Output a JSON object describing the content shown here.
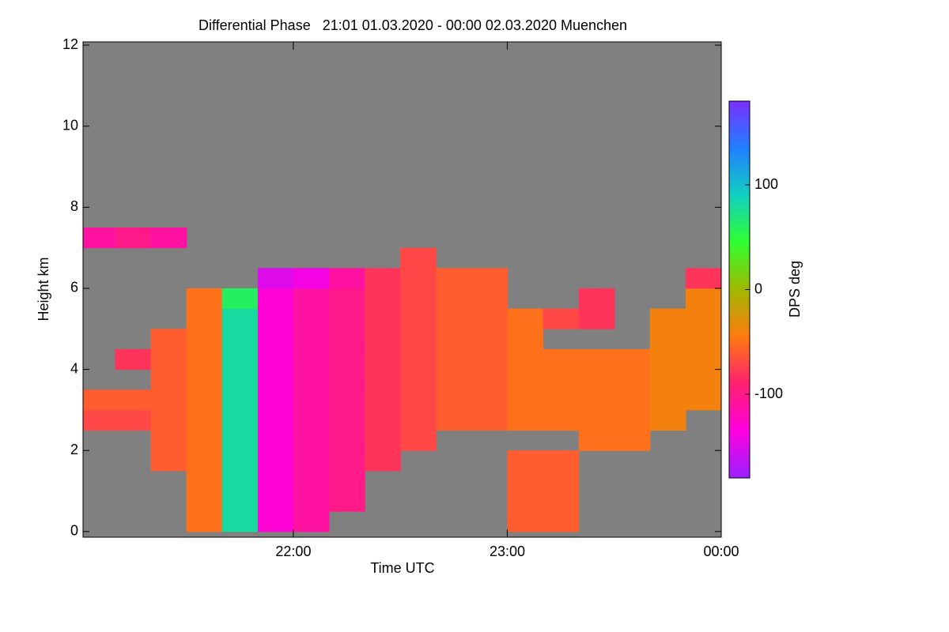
{
  "chart_data": {
    "type": "heatmap",
    "title": "Differential Phase   21:01 01.03.2020 - 00:00 02.03.2020 Muenchen",
    "x_label": "Time UTC",
    "y_label": "Height km",
    "xlim": [
      21.017,
      24.0
    ],
    "ylim": [
      -0.14,
      12.08
    ],
    "xticks": [
      {
        "value": 22,
        "label": "22:00"
      },
      {
        "value": 23,
        "label": "23:00"
      },
      {
        "value": 24,
        "label": "00:00"
      }
    ],
    "yticks": [
      0,
      2,
      4,
      6,
      8,
      10,
      12
    ],
    "x": [
      21.083,
      21.25,
      21.417,
      21.583,
      21.75,
      21.917,
      22.083,
      22.25,
      22.417,
      22.583,
      22.75,
      22.917,
      23.083,
      23.25,
      23.417,
      23.583,
      23.75,
      23.917
    ],
    "y": [
      0.25,
      0.75,
      1.25,
      1.75,
      2.25,
      2.75,
      3.25,
      3.75,
      4.25,
      4.75,
      5.25,
      5.75,
      6.25,
      6.75,
      7.25
    ],
    "z": [
      [
        null,
        null,
        null,
        -50,
        80,
        -130,
        -110,
        null,
        null,
        null,
        null,
        null,
        -60,
        -60,
        null,
        null,
        null,
        null
      ],
      [
        null,
        null,
        null,
        -50,
        80,
        -130,
        -110,
        -100,
        null,
        null,
        null,
        null,
        -60,
        -60,
        null,
        null,
        null,
        null
      ],
      [
        null,
        null,
        null,
        -50,
        80,
        -130,
        -110,
        -100,
        null,
        null,
        null,
        null,
        -60,
        -60,
        null,
        null,
        null,
        null
      ],
      [
        null,
        null,
        -60,
        -50,
        80,
        -130,
        -110,
        -100,
        -80,
        null,
        null,
        null,
        -60,
        -60,
        null,
        null,
        null,
        null
      ],
      [
        null,
        null,
        -60,
        -50,
        80,
        -130,
        -110,
        -100,
        -80,
        -70,
        null,
        null,
        null,
        null,
        -50,
        -50,
        null,
        null
      ],
      [
        -70,
        -70,
        -60,
        -50,
        80,
        -130,
        -110,
        -100,
        -80,
        -70,
        -60,
        -60,
        -50,
        -50,
        -50,
        -50,
        -40,
        null
      ],
      [
        -60,
        -60,
        -60,
        -50,
        80,
        -130,
        -110,
        -100,
        -80,
        -70,
        -60,
        -60,
        -50,
        -50,
        -50,
        -50,
        -40,
        -40
      ],
      [
        null,
        null,
        -60,
        -50,
        80,
        -130,
        -110,
        -100,
        -80,
        -70,
        -60,
        -60,
        -50,
        -50,
        -50,
        -50,
        -40,
        -40
      ],
      [
        null,
        -80,
        -60,
        -50,
        80,
        -130,
        -110,
        -100,
        -80,
        -70,
        -60,
        -60,
        -50,
        -50,
        -50,
        -50,
        -40,
        -40
      ],
      [
        null,
        null,
        -60,
        -50,
        80,
        -130,
        -110,
        -100,
        -80,
        -70,
        -60,
        -60,
        -50,
        null,
        null,
        null,
        -40,
        -40
      ],
      [
        null,
        null,
        null,
        -50,
        80,
        -130,
        -110,
        -100,
        -80,
        -70,
        -60,
        -60,
        -50,
        -70,
        -80,
        null,
        -40,
        -40
      ],
      [
        null,
        null,
        null,
        -50,
        60,
        -130,
        -110,
        -100,
        -80,
        -70,
        -60,
        -60,
        null,
        null,
        -80,
        null,
        null,
        -40
      ],
      [
        null,
        null,
        null,
        null,
        null,
        -150,
        -140,
        -110,
        -80,
        -70,
        -60,
        -60,
        null,
        null,
        null,
        null,
        null,
        -80
      ],
      [
        null,
        null,
        null,
        null,
        null,
        null,
        null,
        null,
        null,
        -70,
        null,
        null,
        null,
        null,
        null,
        null,
        null,
        null
      ],
      [
        -110,
        -100,
        -110,
        null,
        null,
        null,
        null,
        null,
        null,
        null,
        null,
        null,
        null,
        null,
        null,
        null,
        null,
        null
      ]
    ],
    "background_color": "#808080",
    "colorscale": [
      "#9a20ff",
      "#ff00e0",
      "#ff2070",
      "#ff7a10",
      "#a0b800",
      "#30ff30",
      "#10d0c0",
      "#2080ff",
      "#7a30ff"
    ],
    "clim": [
      -180,
      180
    ],
    "cticks": [
      100,
      0,
      -100
    ],
    "colorbar_label": "DPS deg"
  }
}
